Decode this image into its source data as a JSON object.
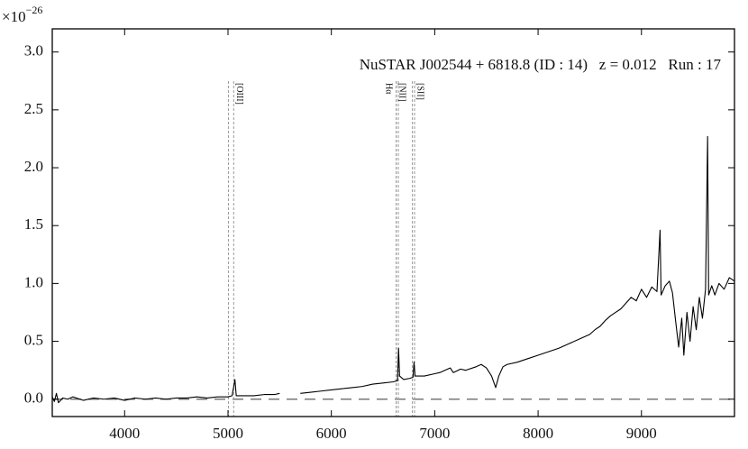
{
  "chart_data": {
    "type": "line",
    "annotation": "NuSTAR J002544 + 6818.8 (ID : 14)   z = 0.012   Run : 17",
    "y_multiplier": {
      "base": "×10",
      "exponent": "−26"
    },
    "x": [
      3300,
      3320,
      3340,
      3360,
      3400,
      3450,
      3500,
      3600,
      3700,
      3800,
      3900,
      4000,
      4100,
      4200,
      4300,
      4400,
      4500,
      4600,
      4700,
      4800,
      4900,
      5000,
      5040,
      5067,
      5080,
      5150,
      5250,
      5350,
      5450,
      5500,
      5600,
      5700,
      5800,
      5900,
      6000,
      6100,
      6200,
      6300,
      6400,
      6500,
      6600,
      6640,
      6650,
      6660,
      6700,
      6760,
      6790,
      6800,
      6810,
      6900,
      7000,
      7050,
      7100,
      7150,
      7180,
      7250,
      7300,
      7400,
      7450,
      7500,
      7550,
      7590,
      7620,
      7660,
      7700,
      7800,
      7900,
      8000,
      8100,
      8200,
      8300,
      8400,
      8500,
      8550,
      8600,
      8650,
      8700,
      8750,
      8800,
      8850,
      8900,
      8950,
      9000,
      9050,
      9100,
      9150,
      9180,
      9190,
      9230,
      9270,
      9300,
      9330,
      9360,
      9390,
      9410,
      9440,
      9470,
      9500,
      9530,
      9560,
      9590,
      9620,
      9640,
      9650,
      9680,
      9710,
      9750,
      9800,
      9850,
      9900
    ],
    "values": [
      0.02,
      -0.02,
      0.05,
      -0.03,
      0.01,
      0.0,
      0.02,
      -0.01,
      0.01,
      0.0,
      0.01,
      -0.01,
      0.01,
      0.0,
      0.01,
      0.0,
      0.01,
      0.01,
      0.02,
      0.01,
      0.02,
      0.02,
      0.03,
      0.17,
      0.03,
      0.03,
      0.03,
      0.04,
      0.04,
      0.05,
      null,
      0.05,
      0.06,
      0.07,
      0.08,
      0.09,
      0.1,
      0.11,
      0.13,
      0.14,
      0.15,
      0.16,
      0.44,
      0.2,
      0.17,
      0.18,
      0.19,
      0.32,
      0.2,
      0.2,
      0.22,
      0.23,
      0.25,
      0.27,
      0.23,
      0.26,
      0.25,
      0.28,
      0.3,
      0.27,
      0.2,
      0.1,
      0.2,
      0.28,
      0.3,
      0.32,
      0.35,
      0.38,
      0.41,
      0.44,
      0.48,
      0.52,
      0.56,
      0.6,
      0.63,
      0.68,
      0.72,
      0.75,
      0.78,
      0.83,
      0.88,
      0.85,
      0.95,
      0.88,
      0.97,
      0.93,
      1.46,
      0.9,
      0.98,
      1.02,
      0.92,
      0.68,
      0.45,
      0.7,
      0.38,
      0.75,
      0.5,
      0.8,
      0.6,
      0.88,
      0.7,
      0.95,
      2.27,
      0.9,
      0.98,
      0.9,
      1.0,
      0.95,
      1.05,
      1.02
    ],
    "color": "#000000",
    "hline": 0,
    "line_markers": [
      {
        "label": "[OIII]",
        "x": [
          5005,
          5055
        ]
      },
      {
        "label": "Hα",
        "x": [
          6627,
          6648
        ]
      },
      {
        "label": "[NII]",
        "x": [
          6627,
          6648
        ]
      },
      {
        "label": "[SII]",
        "x": [
          6784,
          6805
        ]
      }
    ],
    "xlim": [
      3300,
      9900
    ],
    "ylim": [
      -0.15,
      3.2
    ],
    "xticks": [
      4000,
      5000,
      6000,
      7000,
      8000,
      9000
    ],
    "yticks": [
      {
        "value": 0,
        "label": "0.0"
      },
      {
        "value": 0.5,
        "label": "0.5"
      },
      {
        "value": 1,
        "label": "1.0"
      },
      {
        "value": 1.5,
        "label": "1.5"
      },
      {
        "value": 2,
        "label": "2.0"
      },
      {
        "value": 2.5,
        "label": "2.5"
      },
      {
        "value": 3,
        "label": "3.0"
      }
    ]
  }
}
